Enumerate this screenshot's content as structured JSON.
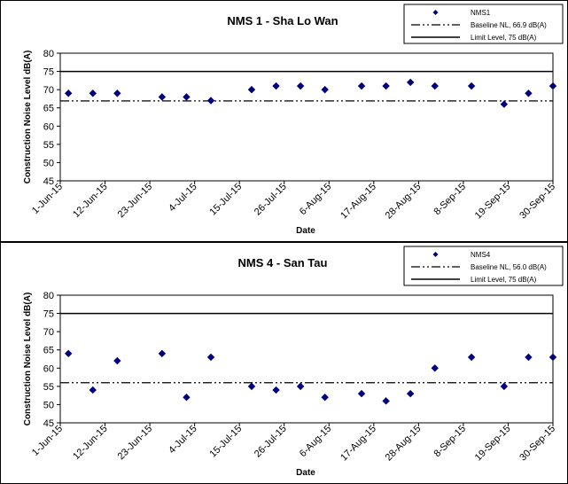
{
  "chart_data": [
    {
      "type": "scatter",
      "title": "NMS 1 - Sha Lo Wan",
      "xlabel": "Date",
      "ylabel": "Construction Noise Level  dB(A)",
      "ylim": [
        45,
        80
      ],
      "yticks": [
        45,
        50,
        55,
        60,
        65,
        70,
        75,
        80
      ],
      "xlim": [
        "2015-06-01",
        "2015-09-30"
      ],
      "xticks": [
        "1-Jun-15",
        "12-Jun-15",
        "23-Jun-15",
        "4-Jul-15",
        "15-Jul-15",
        "26-Jul-15",
        "6-Aug-15",
        "17-Aug-15",
        "28-Aug-15",
        "8-Sep-15",
        "19-Sep-15",
        "30-Sep-15"
      ],
      "grid": false,
      "legend_position": "top-right",
      "series": [
        {
          "name": "NMS1",
          "color": "#000080",
          "marker": "diamond",
          "x": [
            "2015-06-03",
            "2015-06-09",
            "2015-06-15",
            "2015-06-26",
            "2015-07-02",
            "2015-07-08",
            "2015-07-18",
            "2015-07-24",
            "2015-07-30",
            "2015-08-05",
            "2015-08-14",
            "2015-08-20",
            "2015-08-26",
            "2015-09-01",
            "2015-09-10",
            "2015-09-18",
            "2015-09-24",
            "2015-09-30"
          ],
          "y": [
            69,
            69,
            69,
            68,
            68,
            67,
            70,
            71,
            71,
            70,
            71,
            71,
            72,
            71,
            71,
            66,
            69,
            71
          ]
        }
      ],
      "reference_lines": [
        {
          "name": "Baseline NL, 66.9 dB(A)",
          "y": 66.9,
          "style": "dash-dot-dot",
          "color": "#000000"
        },
        {
          "name": "Limit Level, 75 dB(A)",
          "y": 75,
          "style": "solid",
          "color": "#000000"
        }
      ]
    },
    {
      "type": "scatter",
      "title": "NMS 4 - San Tau",
      "xlabel": "Date",
      "ylabel": "Construction Noise Level  dB(A)",
      "ylim": [
        45,
        80
      ],
      "yticks": [
        45,
        50,
        55,
        60,
        65,
        70,
        75,
        80
      ],
      "xlim": [
        "2015-06-01",
        "2015-09-30"
      ],
      "xticks": [
        "1-Jun-15",
        "12-Jun-15",
        "23-Jun-15",
        "4-Jul-15",
        "15-Jul-15",
        "26-Jul-15",
        "6-Aug-15",
        "17-Aug-15",
        "28-Aug-15",
        "8-Sep-15",
        "19-Sep-15",
        "30-Sep-15"
      ],
      "grid": false,
      "legend_position": "top-right",
      "series": [
        {
          "name": "NMS4",
          "color": "#000080",
          "marker": "diamond",
          "x": [
            "2015-06-03",
            "2015-06-09",
            "2015-06-15",
            "2015-06-26",
            "2015-07-02",
            "2015-07-08",
            "2015-07-18",
            "2015-07-24",
            "2015-07-30",
            "2015-08-05",
            "2015-08-14",
            "2015-08-20",
            "2015-08-26",
            "2015-09-01",
            "2015-09-10",
            "2015-09-18",
            "2015-09-24",
            "2015-09-30"
          ],
          "y": [
            64,
            54,
            62,
            64,
            52,
            63,
            55,
            54,
            55,
            52,
            53,
            51,
            53,
            60,
            63,
            55,
            63,
            63
          ]
        }
      ],
      "reference_lines": [
        {
          "name": "Baseline NL, 56.0 dB(A)",
          "y": 56.0,
          "style": "dash-dot-dot",
          "color": "#000000"
        },
        {
          "name": "Limit Level, 75 dB(A)",
          "y": 75,
          "style": "solid",
          "color": "#000000"
        }
      ]
    }
  ]
}
